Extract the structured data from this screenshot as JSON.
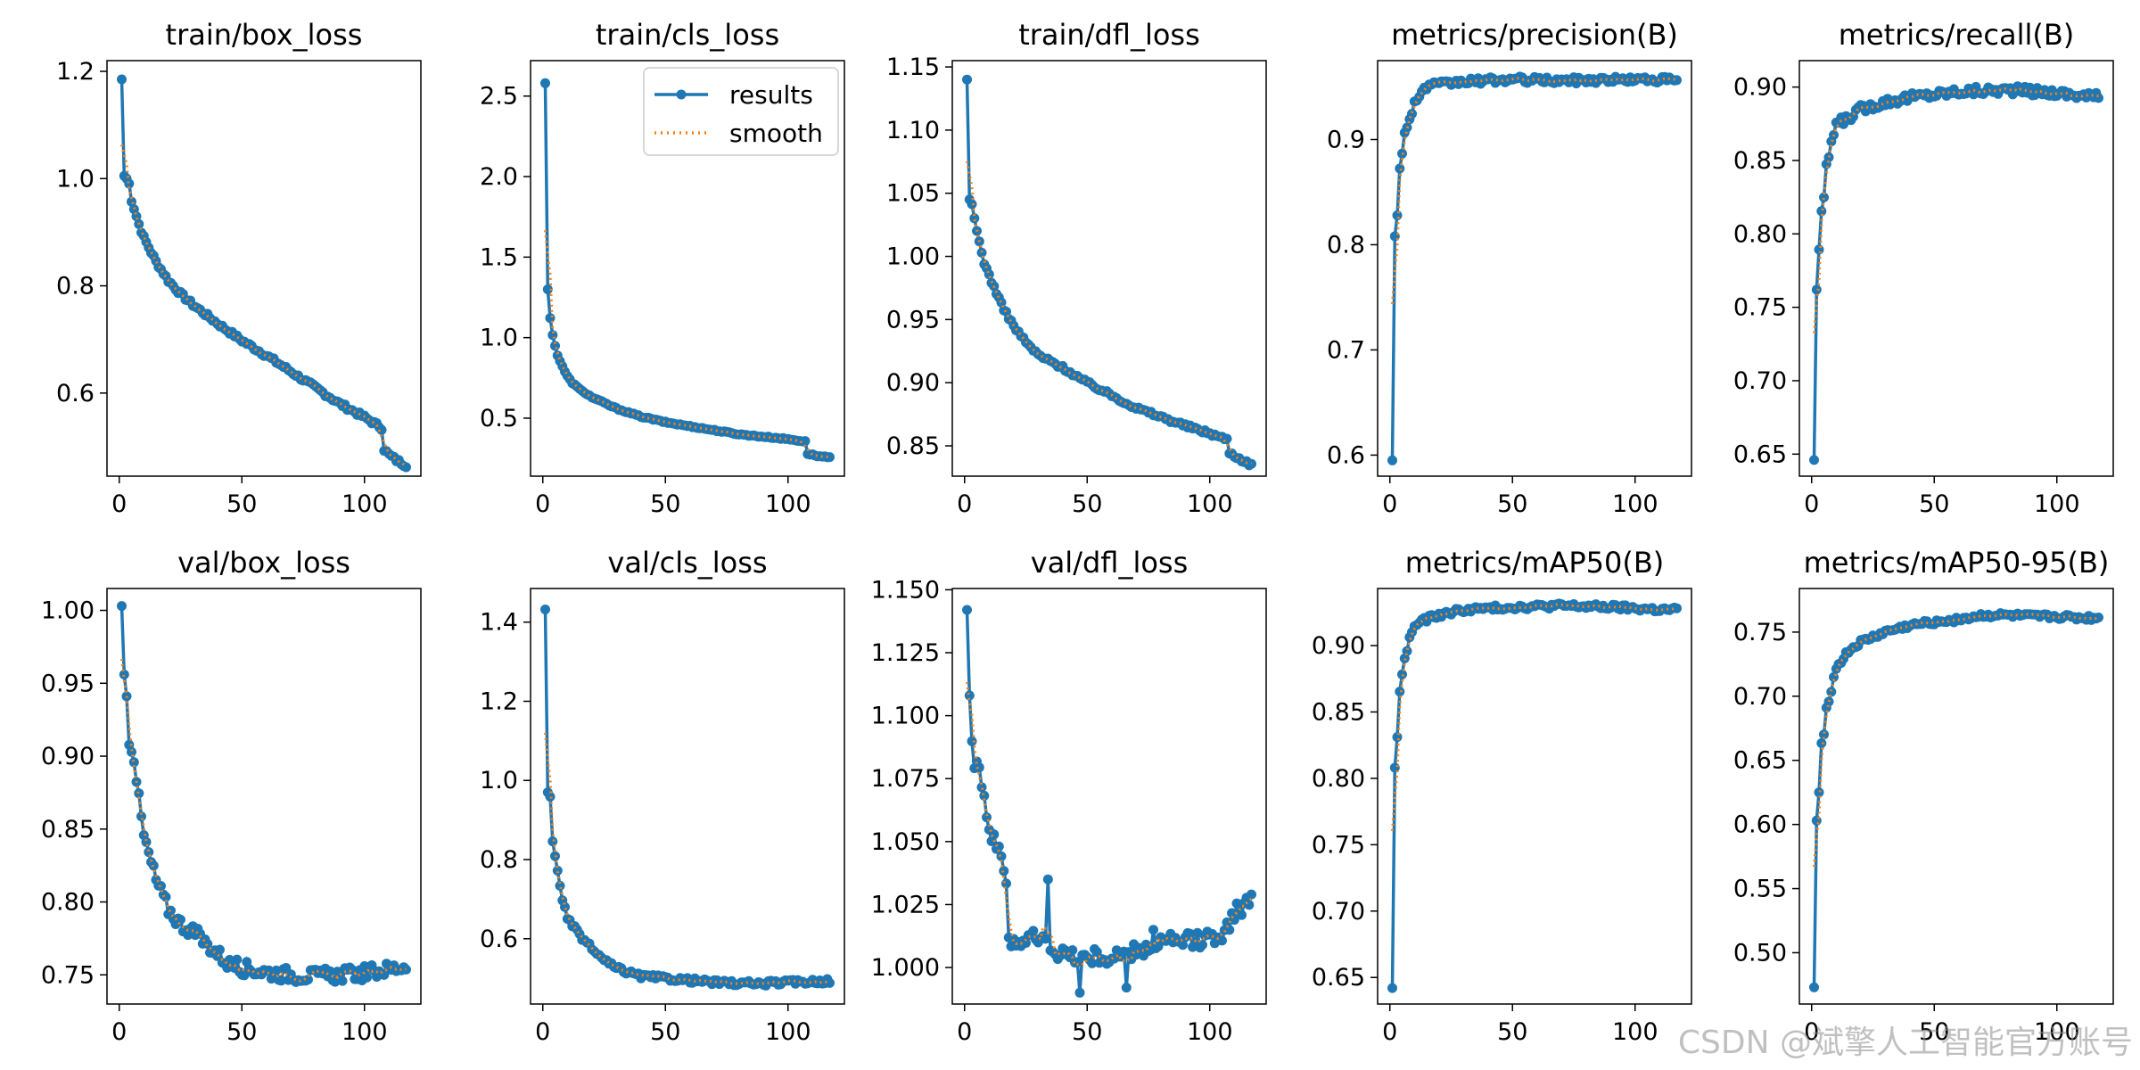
{
  "figure": {
    "series_names": [
      "results",
      "smooth"
    ],
    "colors": {
      "results": "#1f77b4",
      "smooth": "#ff7f0e"
    }
  },
  "watermark": "CSDN @斌擎人工智能官方账号",
  "chart_data": [
    {
      "type": "line",
      "title": "train/box_loss",
      "xlim": [
        -5,
        123
      ],
      "ylim": [
        0.445,
        1.22
      ],
      "xticks": [
        0,
        50,
        100
      ],
      "yticks": [
        0.6,
        0.8,
        1.0,
        1.2
      ],
      "ytick_labels": [
        "0.6",
        "0.8",
        "1.0",
        "1.2"
      ],
      "anchors": [
        [
          1,
          1.185
        ],
        [
          2,
          1.005
        ],
        [
          3,
          1.0
        ],
        [
          4,
          0.99
        ],
        [
          5,
          0.96
        ],
        [
          6,
          0.945
        ],
        [
          8,
          0.915
        ],
        [
          10,
          0.89
        ],
        [
          15,
          0.845
        ],
        [
          20,
          0.81
        ],
        [
          25,
          0.785
        ],
        [
          30,
          0.765
        ],
        [
          40,
          0.73
        ],
        [
          50,
          0.698
        ],
        [
          60,
          0.67
        ],
        [
          70,
          0.64
        ],
        [
          80,
          0.61
        ],
        [
          90,
          0.58
        ],
        [
          100,
          0.555
        ],
        [
          107,
          0.535
        ],
        [
          108,
          0.495
        ],
        [
          110,
          0.485
        ],
        [
          113,
          0.475
        ],
        [
          117,
          0.465
        ]
      ],
      "noise": 0.004,
      "legend": false
    },
    {
      "type": "line",
      "title": "train/cls_loss",
      "xlim": [
        -5,
        123
      ],
      "ylim": [
        0.14,
        2.72
      ],
      "xticks": [
        0,
        50,
        100
      ],
      "yticks": [
        0.5,
        1.0,
        1.5,
        2.0,
        2.5
      ],
      "ytick_labels": [
        "0.5",
        "1.0",
        "1.5",
        "2.0",
        "2.5"
      ],
      "anchors": [
        [
          1,
          2.58
        ],
        [
          2,
          1.3
        ],
        [
          3,
          1.12
        ],
        [
          4,
          1.02
        ],
        [
          5,
          0.95
        ],
        [
          6,
          0.89
        ],
        [
          8,
          0.82
        ],
        [
          10,
          0.76
        ],
        [
          12,
          0.72
        ],
        [
          15,
          0.68
        ],
        [
          20,
          0.63
        ],
        [
          30,
          0.56
        ],
        [
          40,
          0.51
        ],
        [
          50,
          0.475
        ],
        [
          60,
          0.45
        ],
        [
          70,
          0.425
        ],
        [
          80,
          0.4
        ],
        [
          90,
          0.385
        ],
        [
          100,
          0.37
        ],
        [
          107,
          0.355
        ],
        [
          108,
          0.28
        ],
        [
          112,
          0.265
        ],
        [
          117,
          0.255
        ]
      ],
      "noise": 0.004,
      "legend": true
    },
    {
      "type": "line",
      "title": "train/dfl_loss",
      "xlim": [
        -5,
        123
      ],
      "ylim": [
        0.826,
        1.155
      ],
      "xticks": [
        0,
        50,
        100
      ],
      "yticks": [
        0.85,
        0.9,
        0.95,
        1.0,
        1.05,
        1.1,
        1.15
      ],
      "ytick_labels": [
        "0.85",
        "0.90",
        "0.95",
        "1.00",
        "1.05",
        "1.10",
        "1.15"
      ],
      "anchors": [
        [
          1,
          1.14
        ],
        [
          2,
          1.045
        ],
        [
          3,
          1.04
        ],
        [
          5,
          1.02
        ],
        [
          8,
          0.995
        ],
        [
          10,
          0.985
        ],
        [
          15,
          0.962
        ],
        [
          20,
          0.945
        ],
        [
          25,
          0.932
        ],
        [
          30,
          0.922
        ],
        [
          40,
          0.912
        ],
        [
          50,
          0.9
        ],
        [
          60,
          0.89
        ],
        [
          70,
          0.88
        ],
        [
          80,
          0.873
        ],
        [
          90,
          0.866
        ],
        [
          100,
          0.86
        ],
        [
          107,
          0.855
        ],
        [
          108,
          0.845
        ],
        [
          112,
          0.84
        ],
        [
          117,
          0.835
        ]
      ],
      "noise": 0.0015,
      "legend": false
    },
    {
      "type": "line",
      "title": "metrics/precision(B)",
      "xlim": [
        -5,
        123
      ],
      "ylim": [
        0.58,
        0.975
      ],
      "xticks": [
        0,
        50,
        100
      ],
      "yticks": [
        0.6,
        0.7,
        0.8,
        0.9
      ],
      "ytick_labels": [
        "0.6",
        "0.7",
        "0.8",
        "0.9"
      ],
      "anchors": [
        [
          1,
          0.595
        ],
        [
          2,
          0.808
        ],
        [
          3,
          0.83
        ],
        [
          4,
          0.875
        ],
        [
          5,
          0.885
        ],
        [
          6,
          0.905
        ],
        [
          8,
          0.92
        ],
        [
          10,
          0.935
        ],
        [
          13,
          0.945
        ],
        [
          16,
          0.952
        ],
        [
          20,
          0.952
        ],
        [
          30,
          0.955
        ],
        [
          50,
          0.957
        ],
        [
          70,
          0.956
        ],
        [
          90,
          0.957
        ],
        [
          110,
          0.957
        ],
        [
          117,
          0.956
        ]
      ],
      "noise": 0.003,
      "legend": false
    },
    {
      "type": "line",
      "title": "metrics/recall(B)",
      "xlim": [
        -5,
        123
      ],
      "ylim": [
        0.635,
        0.918
      ],
      "xticks": [
        0,
        50,
        100
      ],
      "yticks": [
        0.65,
        0.7,
        0.75,
        0.8,
        0.85,
        0.9
      ],
      "ytick_labels": [
        "0.65",
        "0.70",
        "0.75",
        "0.80",
        "0.85",
        "0.90"
      ],
      "anchors": [
        [
          1,
          0.646
        ],
        [
          2,
          0.762
        ],
        [
          3,
          0.79
        ],
        [
          4,
          0.815
        ],
        [
          5,
          0.822
        ],
        [
          6,
          0.845
        ],
        [
          8,
          0.862
        ],
        [
          10,
          0.875
        ],
        [
          14,
          0.878
        ],
        [
          20,
          0.885
        ],
        [
          30,
          0.89
        ],
        [
          40,
          0.893
        ],
        [
          60,
          0.897
        ],
        [
          80,
          0.898
        ],
        [
          100,
          0.896
        ],
        [
          117,
          0.893
        ]
      ],
      "noise": 0.003,
      "legend": false
    },
    {
      "type": "line",
      "title": "val/box_loss",
      "xlim": [
        -5,
        123
      ],
      "ylim": [
        0.73,
        1.015
      ],
      "xticks": [
        0,
        50,
        100
      ],
      "yticks": [
        0.75,
        0.8,
        0.85,
        0.9,
        0.95,
        1.0
      ],
      "ytick_labels": [
        "0.75",
        "0.80",
        "0.85",
        "0.90",
        "0.95",
        "1.00"
      ],
      "anchors": [
        [
          1,
          1.003
        ],
        [
          2,
          0.956
        ],
        [
          3,
          0.94
        ],
        [
          4,
          0.912
        ],
        [
          6,
          0.9
        ],
        [
          8,
          0.87
        ],
        [
          10,
          0.845
        ],
        [
          15,
          0.815
        ],
        [
          20,
          0.795
        ],
        [
          25,
          0.785
        ],
        [
          30,
          0.78
        ],
        [
          35,
          0.772
        ],
        [
          40,
          0.765
        ],
        [
          45,
          0.757
        ],
        [
          50,
          0.755
        ],
        [
          60,
          0.752
        ],
        [
          70,
          0.75
        ],
        [
          80,
          0.749
        ],
        [
          90,
          0.75
        ],
        [
          100,
          0.751
        ],
        [
          110,
          0.754
        ],
        [
          117,
          0.756
        ]
      ],
      "noise": 0.005,
      "legend": false
    },
    {
      "type": "line",
      "title": "val/cls_loss",
      "xlim": [
        -5,
        123
      ],
      "ylim": [
        0.435,
        1.485
      ],
      "xticks": [
        0,
        50,
        100
      ],
      "yticks": [
        0.6,
        0.8,
        1.0,
        1.2,
        1.4
      ],
      "ytick_labels": [
        "0.6",
        "0.8",
        "1.0",
        "1.2",
        "1.4"
      ],
      "anchors": [
        [
          1,
          1.432
        ],
        [
          2,
          0.97
        ],
        [
          3,
          0.955
        ],
        [
          4,
          0.845
        ],
        [
          5,
          0.81
        ],
        [
          6,
          0.775
        ],
        [
          8,
          0.7
        ],
        [
          10,
          0.65
        ],
        [
          15,
          0.61
        ],
        [
          20,
          0.575
        ],
        [
          25,
          0.545
        ],
        [
          30,
          0.525
        ],
        [
          40,
          0.505
        ],
        [
          50,
          0.5
        ],
        [
          60,
          0.495
        ],
        [
          70,
          0.49
        ],
        [
          80,
          0.487
        ],
        [
          90,
          0.487
        ],
        [
          100,
          0.49
        ],
        [
          110,
          0.492
        ],
        [
          117,
          0.493
        ]
      ],
      "noise": 0.006,
      "legend": false
    },
    {
      "type": "line",
      "title": "val/dfl_loss",
      "xlim": [
        -5,
        123
      ],
      "ylim": [
        0.9855,
        1.1505
      ],
      "xticks": [
        0,
        50,
        100
      ],
      "yticks": [
        1.0,
        1.025,
        1.05,
        1.075,
        1.1,
        1.125,
        1.15
      ],
      "ytick_labels": [
        "1.000",
        "1.025",
        "1.050",
        "1.075",
        "1.100",
        "1.125",
        "1.150"
      ],
      "anchors": [
        [
          1,
          1.142
        ],
        [
          2,
          1.108
        ],
        [
          3,
          1.093
        ],
        [
          4,
          1.082
        ],
        [
          6,
          1.08
        ],
        [
          8,
          1.068
        ],
        [
          10,
          1.055
        ],
        [
          14,
          1.045
        ],
        [
          17,
          1.035
        ],
        [
          18,
          1.012
        ],
        [
          22,
          1.01
        ],
        [
          28,
          1.012
        ],
        [
          34,
          1.01
        ],
        [
          40,
          1.005
        ],
        [
          50,
          1.004
        ],
        [
          60,
          1.004
        ],
        [
          70,
          1.006
        ],
        [
          80,
          1.01
        ],
        [
          90,
          1.01
        ],
        [
          100,
          1.012
        ],
        [
          107,
          1.015
        ],
        [
          110,
          1.022
        ],
        [
          117,
          1.026
        ]
      ],
      "noise": 0.0035,
      "spikes": [
        [
          34,
          1.035
        ],
        [
          47,
          0.99
        ],
        [
          66,
          0.992
        ],
        [
          77,
          1.015
        ]
      ],
      "legend": false
    },
    {
      "type": "line",
      "title": "metrics/mAP50(B)",
      "xlim": [
        -5,
        123
      ],
      "ylim": [
        0.63,
        0.943
      ],
      "xticks": [
        0,
        50,
        100
      ],
      "yticks": [
        0.65,
        0.7,
        0.75,
        0.8,
        0.85,
        0.9
      ],
      "ytick_labels": [
        "0.65",
        "0.70",
        "0.75",
        "0.80",
        "0.85",
        "0.90"
      ],
      "anchors": [
        [
          1,
          0.642
        ],
        [
          2,
          0.808
        ],
        [
          3,
          0.832
        ],
        [
          4,
          0.865
        ],
        [
          5,
          0.877
        ],
        [
          6,
          0.89
        ],
        [
          8,
          0.905
        ],
        [
          10,
          0.915
        ],
        [
          15,
          0.92
        ],
        [
          20,
          0.923
        ],
        [
          30,
          0.927
        ],
        [
          50,
          0.929
        ],
        [
          70,
          0.93
        ],
        [
          90,
          0.929
        ],
        [
          110,
          0.927
        ],
        [
          117,
          0.927
        ]
      ],
      "noise": 0.002,
      "legend": false
    },
    {
      "type": "line",
      "title": "metrics/mAP50-95(B)",
      "xlim": [
        -5,
        123
      ],
      "ylim": [
        0.46,
        0.784
      ],
      "xticks": [
        0,
        50,
        100
      ],
      "yticks": [
        0.5,
        0.55,
        0.6,
        0.65,
        0.7,
        0.75
      ],
      "ytick_labels": [
        "0.50",
        "0.55",
        "0.60",
        "0.65",
        "0.70",
        "0.75"
      ],
      "anchors": [
        [
          1,
          0.473
        ],
        [
          2,
          0.603
        ],
        [
          3,
          0.625
        ],
        [
          4,
          0.665
        ],
        [
          5,
          0.672
        ],
        [
          6,
          0.69
        ],
        [
          8,
          0.705
        ],
        [
          10,
          0.722
        ],
        [
          15,
          0.735
        ],
        [
          20,
          0.742
        ],
        [
          30,
          0.75
        ],
        [
          40,
          0.755
        ],
        [
          50,
          0.758
        ],
        [
          60,
          0.76
        ],
        [
          70,
          0.763
        ],
        [
          80,
          0.763
        ],
        [
          90,
          0.762
        ],
        [
          100,
          0.762
        ],
        [
          110,
          0.761
        ],
        [
          117,
          0.761
        ]
      ],
      "noise": 0.002,
      "legend": false
    }
  ]
}
